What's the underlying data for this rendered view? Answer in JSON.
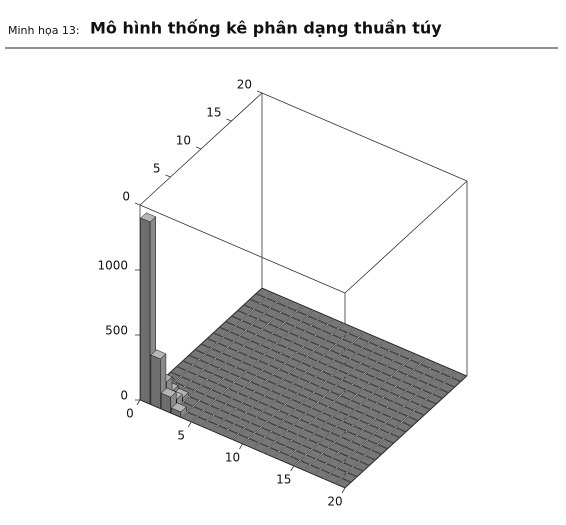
{
  "label": "Minh họa 13:",
  "title": "Mô hình thống kê phân dạng thuần túy",
  "chart_data": {
    "type": "bar3d",
    "color": "#b5b5b5",
    "xlim": [
      0,
      20
    ],
    "ylim": [
      0,
      20
    ],
    "zlim": [
      0,
      1500
    ],
    "xticks": [
      0,
      5,
      10,
      15,
      20
    ],
    "yticks": [
      0,
      5,
      10,
      15,
      20
    ],
    "zticks": [
      0,
      500,
      1000
    ],
    "z": [
      [
        1400,
        250,
        90,
        30,
        0,
        0,
        0,
        0,
        0,
        0,
        0,
        0,
        0,
        0,
        0,
        0,
        0,
        0,
        0,
        0
      ],
      [
        380,
        160,
        50,
        0,
        0,
        0,
        0,
        0,
        0,
        0,
        0,
        0,
        0,
        0,
        0,
        0,
        0,
        0,
        0,
        0
      ],
      [
        120,
        60,
        30,
        0,
        0,
        0,
        0,
        0,
        0,
        0,
        0,
        0,
        0,
        0,
        0,
        0,
        0,
        0,
        0,
        0
      ],
      [
        40,
        0,
        0,
        0,
        0,
        0,
        0,
        0,
        0,
        0,
        0,
        0,
        0,
        0,
        0,
        0,
        0,
        0,
        0,
        0
      ],
      [
        0,
        0,
        0,
        0,
        0,
        0,
        0,
        0,
        0,
        0,
        0,
        0,
        0,
        0,
        0,
        0,
        0,
        0,
        0,
        0
      ],
      [
        0,
        0,
        0,
        0,
        0,
        0,
        0,
        0,
        0,
        0,
        0,
        0,
        0,
        0,
        0,
        0,
        0,
        0,
        0,
        0
      ],
      [
        0,
        0,
        0,
        0,
        0,
        0,
        0,
        0,
        0,
        0,
        0,
        0,
        0,
        0,
        0,
        0,
        0,
        0,
        0,
        0
      ],
      [
        0,
        0,
        0,
        0,
        0,
        0,
        0,
        0,
        0,
        0,
        0,
        0,
        0,
        0,
        0,
        0,
        0,
        0,
        0,
        0
      ],
      [
        0,
        0,
        0,
        0,
        0,
        0,
        0,
        0,
        0,
        0,
        0,
        0,
        0,
        0,
        0,
        0,
        0,
        0,
        0,
        0
      ],
      [
        0,
        0,
        0,
        0,
        0,
        0,
        0,
        0,
        0,
        0,
        0,
        0,
        0,
        0,
        0,
        0,
        0,
        0,
        0,
        0
      ],
      [
        0,
        0,
        0,
        0,
        0,
        0,
        0,
        0,
        0,
        0,
        0,
        0,
        0,
        0,
        0,
        0,
        0,
        0,
        0,
        0
      ],
      [
        0,
        0,
        0,
        0,
        0,
        0,
        0,
        0,
        0,
        0,
        0,
        0,
        0,
        0,
        0,
        0,
        0,
        0,
        0,
        0
      ],
      [
        0,
        0,
        0,
        0,
        0,
        0,
        0,
        0,
        0,
        0,
        0,
        0,
        0,
        0,
        0,
        0,
        0,
        0,
        0,
        0
      ],
      [
        0,
        0,
        0,
        0,
        0,
        0,
        0,
        0,
        0,
        0,
        0,
        0,
        0,
        0,
        0,
        0,
        0,
        0,
        0,
        0
      ],
      [
        0,
        0,
        0,
        0,
        0,
        0,
        0,
        0,
        0,
        0,
        0,
        0,
        0,
        0,
        0,
        0,
        0,
        0,
        0,
        0
      ],
      [
        0,
        0,
        0,
        0,
        0,
        0,
        0,
        0,
        0,
        0,
        0,
        0,
        0,
        0,
        0,
        0,
        0,
        0,
        0,
        0
      ],
      [
        0,
        0,
        0,
        0,
        0,
        0,
        0,
        0,
        0,
        0,
        0,
        0,
        0,
        0,
        0,
        0,
        0,
        0,
        0,
        0
      ],
      [
        0,
        0,
        0,
        0,
        0,
        0,
        0,
        0,
        0,
        0,
        0,
        0,
        0,
        0,
        0,
        0,
        0,
        0,
        0,
        0
      ],
      [
        0,
        0,
        0,
        0,
        0,
        0,
        0,
        0,
        0,
        0,
        0,
        0,
        0,
        0,
        0,
        0,
        0,
        0,
        0,
        0
      ],
      [
        0,
        0,
        0,
        0,
        0,
        0,
        0,
        0,
        0,
        0,
        0,
        0,
        0,
        0,
        0,
        0,
        0,
        0,
        0,
        0
      ]
    ]
  }
}
